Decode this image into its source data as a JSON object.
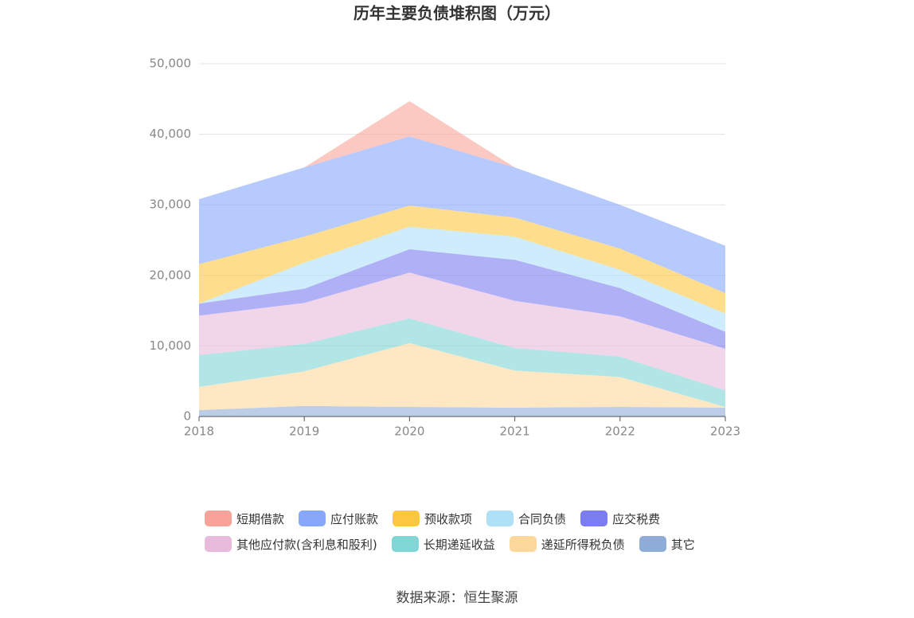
{
  "chart_data": {
    "type": "stacked-area",
    "title": "历年主要负债堆积图（万元）",
    "categories": [
      "2018",
      "2019",
      "2020",
      "2021",
      "2022",
      "2023"
    ],
    "series": [
      {
        "name": "短期借款",
        "color": "#f8a39a",
        "values": [
          0,
          0,
          5000,
          0,
          0,
          0
        ]
      },
      {
        "name": "应付账款",
        "color": "#87a7fb",
        "values": [
          9200,
          9800,
          9800,
          7100,
          6200,
          6700
        ]
      },
      {
        "name": "预收款项",
        "color": "#fdc840",
        "values": [
          5600,
          3700,
          3000,
          2700,
          3000,
          2900
        ]
      },
      {
        "name": "合同负债",
        "color": "#aee0f8",
        "values": [
          0,
          3700,
          3200,
          3300,
          2600,
          2600
        ]
      },
      {
        "name": "应交税费",
        "color": "#7b7cf0",
        "values": [
          1700,
          2000,
          3300,
          5800,
          4000,
          2400
        ]
      },
      {
        "name": "其他应付款(含利息和股利)",
        "color": "#e8bbdc",
        "values": [
          5600,
          5800,
          6500,
          6700,
          5700,
          5900
        ]
      },
      {
        "name": "长期递延收益",
        "color": "#7fd6d5",
        "values": [
          4500,
          3900,
          3500,
          3200,
          2900,
          2350
        ]
      },
      {
        "name": "递延所得税负债",
        "color": "#fdd89c",
        "values": [
          3300,
          4900,
          9050,
          5250,
          4250,
          100
        ]
      },
      {
        "name": "其它",
        "color": "#8fabd8",
        "values": [
          900,
          1500,
          1350,
          1250,
          1350,
          1250
        ]
      }
    ],
    "ylim": [
      0,
      50000
    ],
    "yticks": [
      0,
      {
        "value": 10000,
        "label": "10,000"
      },
      {
        "value": 20000,
        "label": "20,000"
      },
      {
        "value": 30000,
        "label": "30,000"
      },
      {
        "value": 40000,
        "label": "40,000"
      },
      {
        "value": 50000,
        "label": "50,000"
      }
    ],
    "grid": true,
    "source": "数据来源：恒生聚源"
  }
}
